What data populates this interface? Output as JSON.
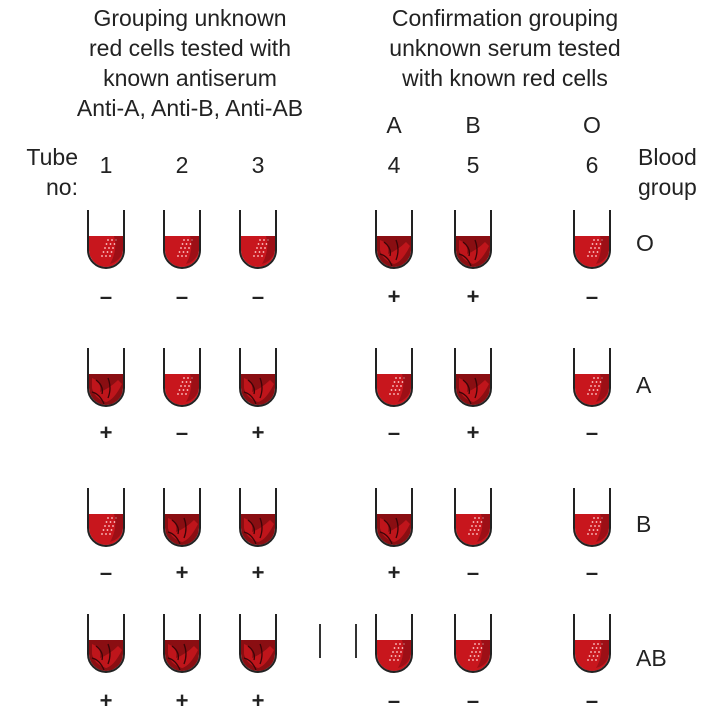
{
  "headers": {
    "left": [
      "Grouping unknown",
      "red cells tested with",
      "known antiserum",
      "Anti-A, Anti-B, Anti-AB"
    ],
    "right": [
      "Confirmation grouping",
      "unknown serum tested",
      "with known red cells"
    ]
  },
  "tube_label": [
    "Tube",
    "no:"
  ],
  "blood_group_label": [
    "Blood",
    "group"
  ],
  "known_cells": [
    "A",
    "B",
    "O"
  ],
  "tube_numbers": [
    "1",
    "2",
    "3",
    "4",
    "5",
    "6"
  ],
  "rows": [
    {
      "group": "O",
      "results": [
        "–",
        "–",
        "–",
        "+",
        "+",
        "–"
      ]
    },
    {
      "group": "A",
      "results": [
        "+",
        "–",
        "+",
        "–",
        "+",
        "–"
      ]
    },
    {
      "group": "B",
      "results": [
        "–",
        "+",
        "+",
        "+",
        "–",
        "–"
      ]
    },
    {
      "group": "AB",
      "results": [
        "+",
        "+",
        "+",
        "–",
        "–",
        "–"
      ]
    }
  ],
  "colors": {
    "blood": "#c8161d",
    "blood_dark": "#8a0e12",
    "tube_outline": "#222222"
  }
}
